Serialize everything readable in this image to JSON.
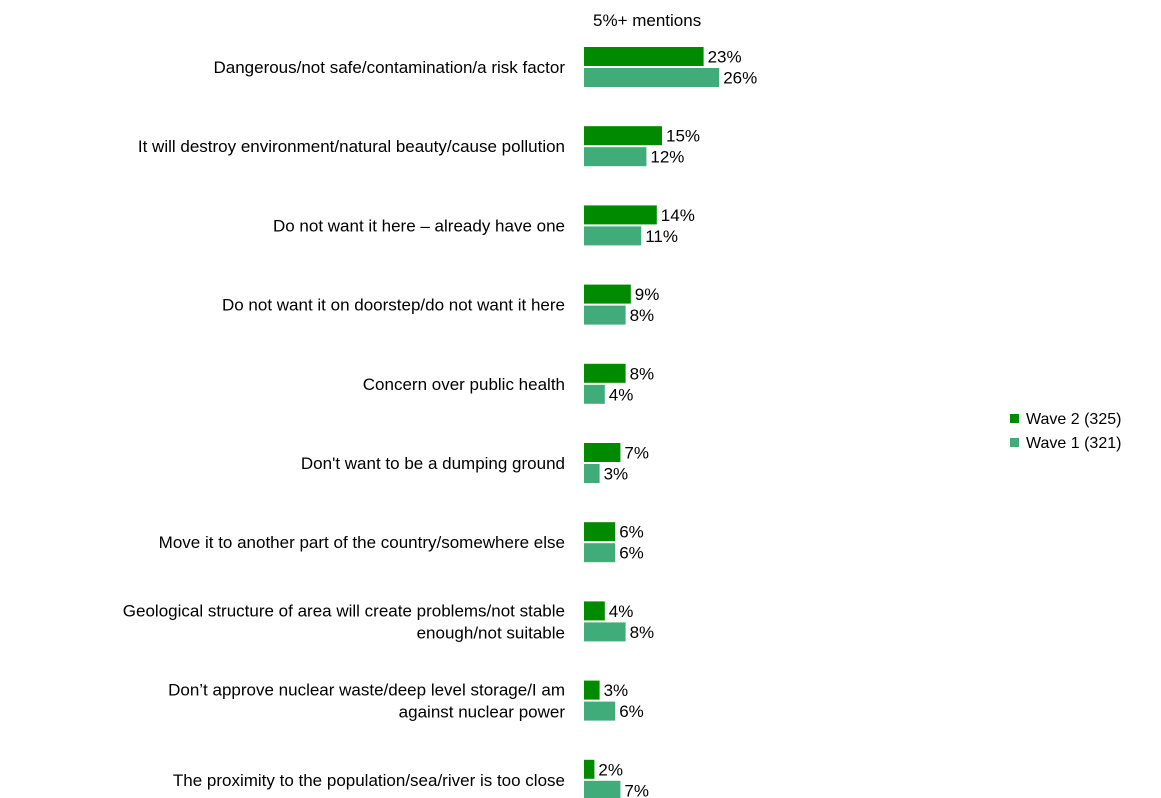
{
  "chart_data": {
    "type": "bar",
    "orientation": "horizontal",
    "title": "",
    "subtitle": "5%+ mentions",
    "xlabel": "",
    "ylabel": "",
    "value_suffix": "%",
    "grid": false,
    "legend_position": "right",
    "categories": [
      [
        "Dangerous/not safe/contamination/a risk factor"
      ],
      [
        "It will destroy environment/natural beauty/cause pollution"
      ],
      [
        "Do not want it here – already have one"
      ],
      [
        "Do not want it on doorstep/do not want it here"
      ],
      [
        "Concern over public health"
      ],
      [
        "Don't want to be a dumping ground"
      ],
      [
        "Move it to another part of the country/somewhere else"
      ],
      [
        "Geological structure of area will create problems/not stable",
        "enough/not suitable"
      ],
      [
        "Don’t approve nuclear waste/deep level storage/I am",
        "against nuclear power"
      ],
      [
        "The proximity to the population/sea/river is too close"
      ]
    ],
    "series": [
      {
        "name": "Wave 2 (325)",
        "color": "#008a00",
        "values": [
          23,
          15,
          14,
          9,
          8,
          7,
          6,
          4,
          3,
          2
        ]
      },
      {
        "name": "Wave 1 (321)",
        "color": "#3fac7a",
        "values": [
          26,
          12,
          11,
          8,
          4,
          3,
          6,
          8,
          6,
          7
        ]
      }
    ]
  }
}
